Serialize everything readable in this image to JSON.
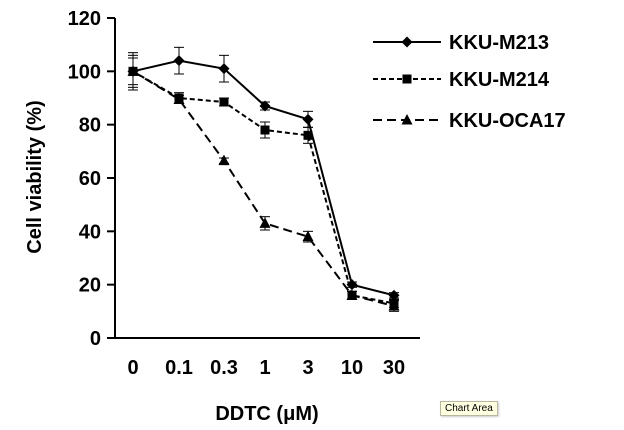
{
  "chart_data": {
    "type": "line",
    "title": "",
    "xlabel": "DDTC (μM)",
    "ylabel": "Cell viability (%)",
    "ylim": [
      0,
      120
    ],
    "yticks": [
      0,
      20,
      40,
      60,
      80,
      100,
      120
    ],
    "categories": [
      "0",
      "0.1",
      "0.3",
      "1",
      "3",
      "10",
      "30"
    ],
    "grid": false,
    "legend_position": "top-right",
    "series": [
      {
        "name": "KKU-M213",
        "marker": "diamond",
        "line_style": "solid",
        "values": [
          100,
          104,
          101,
          87,
          82,
          20,
          16
        ],
        "errors": [
          6,
          5,
          5,
          1.5,
          3,
          1,
          1
        ]
      },
      {
        "name": "KKU-M214",
        "marker": "square",
        "line_style": "short-dash",
        "values": [
          100,
          90,
          88.5,
          78,
          76,
          16,
          13
        ],
        "errors": [
          7,
          2,
          1.5,
          3,
          3,
          1.5,
          1.5
        ]
      },
      {
        "name": "KKU-OCA17",
        "marker": "triangle",
        "line_style": "long-dash",
        "values": [
          100,
          89.5,
          66.5,
          43,
          38,
          16,
          12
        ],
        "errors": [
          5,
          1.5,
          1,
          2.5,
          2,
          1.5,
          2
        ]
      }
    ]
  },
  "tooltip": {
    "text": "Chart Area"
  }
}
